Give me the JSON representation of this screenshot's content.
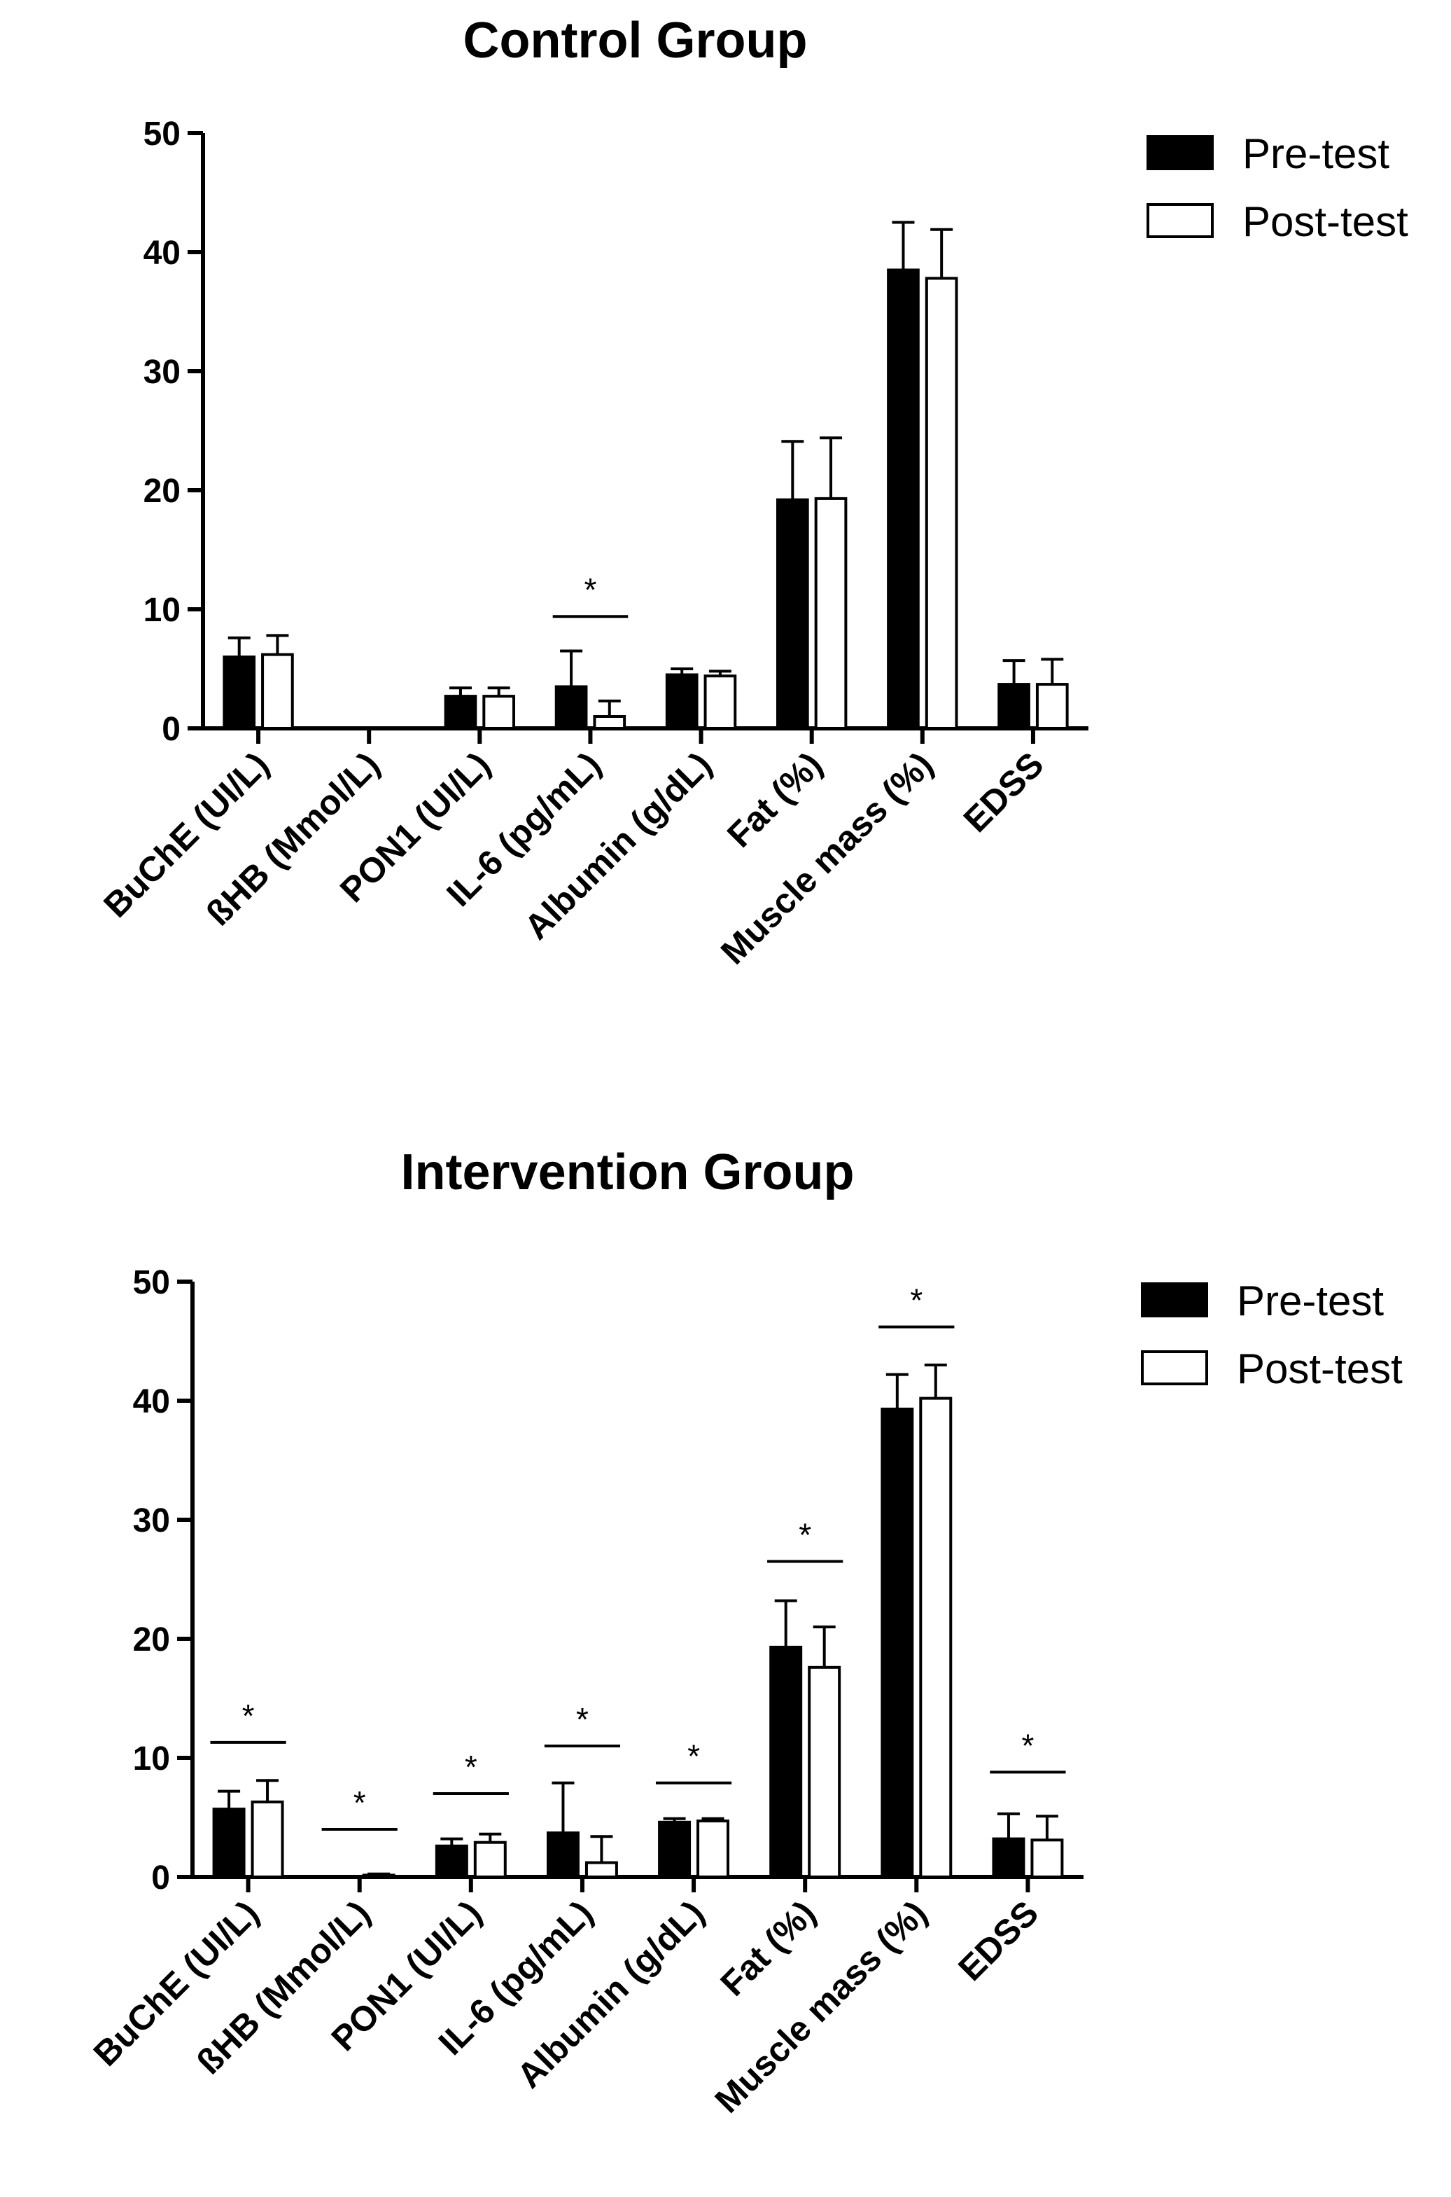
{
  "chart_data": [
    {
      "type": "bar",
      "title": "Control Group",
      "xlabel": "",
      "ylabel": "",
      "ylim": [
        0,
        50
      ],
      "yticks": [
        "0",
        "10",
        "20",
        "30",
        "40",
        "50"
      ],
      "categories": [
        "BuChE (UI/L)",
        "ßHB (Mmol/L)",
        "PON1 (UI/L)",
        "IL-6 (pg/mL)",
        "Albumin (g/dL)",
        "Fat (%)",
        "Muscle mass (%)",
        "EDSS"
      ],
      "series": [
        {
          "name": "Pre-test",
          "values": [
            6.0,
            0,
            2.7,
            3.5,
            4.5,
            19.2,
            38.5,
            3.7
          ],
          "errors": [
            1.6,
            0,
            0.7,
            3.0,
            0.5,
            4.9,
            4.0,
            2.0
          ]
        },
        {
          "name": "Post-test",
          "values": [
            6.2,
            0,
            2.7,
            1.0,
            4.4,
            19.3,
            37.8,
            3.7
          ],
          "errors": [
            1.6,
            0,
            0.7,
            1.3,
            0.4,
            5.1,
            4.1,
            2.1
          ]
        }
      ],
      "significance": [
        {
          "category_index": 3,
          "label": "*",
          "y": 9.4
        }
      ],
      "legend": {
        "position": "top-right",
        "entries": [
          "Pre-test",
          "Post-test"
        ]
      },
      "grid": false
    },
    {
      "type": "bar",
      "title": "Intervention Group",
      "xlabel": "",
      "ylabel": "",
      "ylim": [
        0,
        50
      ],
      "yticks": [
        "0",
        "10",
        "20",
        "30",
        "40",
        "50"
      ],
      "categories": [
        "BuChE (UI/L)",
        "ßHB (Mmol/L)",
        "PON1 (UI/L)",
        "IL-6 (pg/mL)",
        "Albumin (g/dL)",
        "Fat (%)",
        "Muscle mass (%)",
        "EDSS"
      ],
      "series": [
        {
          "name": "Pre-test",
          "values": [
            5.7,
            0,
            2.6,
            3.7,
            4.6,
            19.3,
            39.3,
            3.2
          ],
          "errors": [
            1.5,
            0,
            0.6,
            4.2,
            0.3,
            3.9,
            2.9,
            2.1
          ]
        },
        {
          "name": "Post-test",
          "values": [
            6.3,
            0.15,
            2.9,
            1.2,
            4.7,
            17.6,
            40.2,
            3.1
          ],
          "errors": [
            1.8,
            0.1,
            0.7,
            2.2,
            0.2,
            3.4,
            2.8,
            2.0
          ]
        }
      ],
      "significance": [
        {
          "category_index": 0,
          "label": "*",
          "y": 11.3
        },
        {
          "category_index": 1,
          "label": "*",
          "y": 4.0
        },
        {
          "category_index": 2,
          "label": "*",
          "y": 7.0
        },
        {
          "category_index": 3,
          "label": "*",
          "y": 11.0
        },
        {
          "category_index": 4,
          "label": "*",
          "y": 7.9
        },
        {
          "category_index": 5,
          "label": "*",
          "y": 26.5
        },
        {
          "category_index": 6,
          "label": "*",
          "y": 46.2
        },
        {
          "category_index": 7,
          "label": "*",
          "y": 8.8
        }
      ],
      "legend": {
        "position": "top-right",
        "entries": [
          "Pre-test",
          "Post-test"
        ]
      },
      "grid": false
    }
  ],
  "colors": {
    "pre_fill": "#000000",
    "post_fill": "#ffffff",
    "stroke": "#000000"
  }
}
